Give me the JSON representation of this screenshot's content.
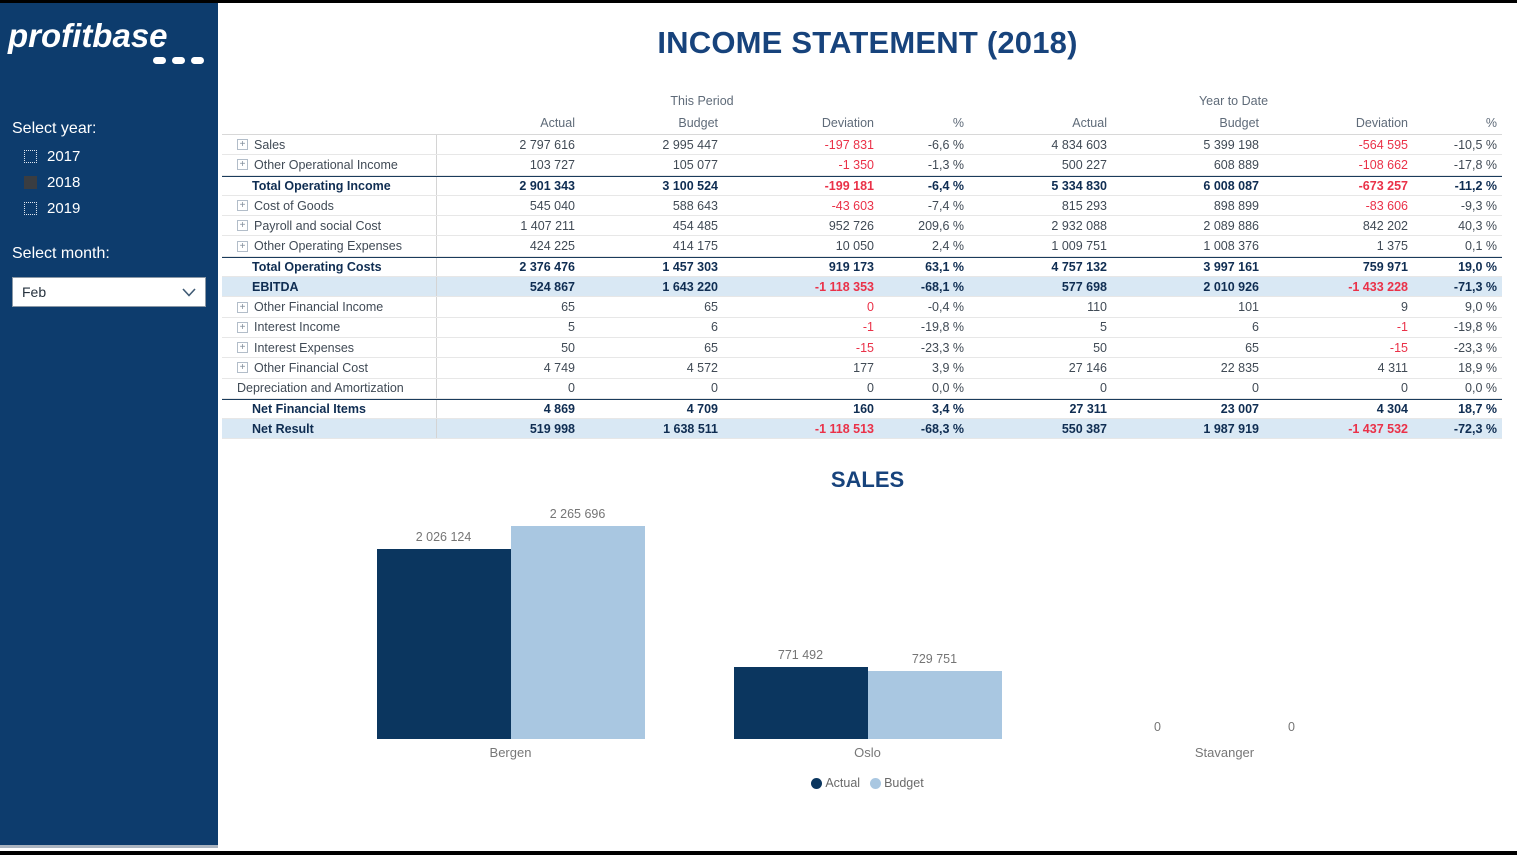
{
  "colors": {
    "sidebar_bg": "#0d3c6d",
    "title": "#17437c",
    "negative_red": "#ea3148",
    "highlight_row_bg": "#d9e8f4",
    "bar_actual": "#0b365f",
    "bar_budget": "#a9c7e1"
  },
  "sidebar": {
    "logo_text": "profitbase",
    "year_label": "Select year:",
    "years": [
      {
        "label": "2017",
        "checked": false
      },
      {
        "label": "2018",
        "checked": true
      },
      {
        "label": "2019",
        "checked": false
      }
    ],
    "month_label": "Select month:",
    "month_value": "Feb"
  },
  "header": {
    "title": "INCOME STATEMENT (2018)"
  },
  "table": {
    "group_headers": [
      "This Period",
      "Year to Date"
    ],
    "column_headers": [
      "Actual",
      "Budget",
      "Deviation",
      "%"
    ],
    "rows": [
      {
        "label": "Sales",
        "expandable": true,
        "bold": false,
        "top_border": false,
        "highlight": false,
        "cells": [
          "2 797 616",
          "2 995 447",
          "-197 831",
          "-6,6 %",
          "4 834 603",
          "5 399 198",
          "-564 595",
          "-10,5 %"
        ],
        "red_cols": [
          2,
          6
        ]
      },
      {
        "label": "Other Operational Income",
        "expandable": true,
        "bold": false,
        "top_border": false,
        "highlight": false,
        "cells": [
          "103 727",
          "105 077",
          "-1 350",
          "-1,3 %",
          "500 227",
          "608 889",
          "-108 662",
          "-17,8 %"
        ],
        "red_cols": [
          2,
          6
        ]
      },
      {
        "label": "Total Operating Income",
        "expandable": false,
        "bold": true,
        "top_border": true,
        "highlight": false,
        "cells": [
          "2 901 343",
          "3 100 524",
          "-199 181",
          "-6,4 %",
          "5 334 830",
          "6 008 087",
          "-673 257",
          "-11,2 %"
        ],
        "red_cols": [
          2,
          6
        ]
      },
      {
        "label": "Cost of Goods",
        "expandable": true,
        "bold": false,
        "top_border": false,
        "highlight": false,
        "cells": [
          "545 040",
          "588 643",
          "-43 603",
          "-7,4 %",
          "815 293",
          "898 899",
          "-83 606",
          "-9,3 %"
        ],
        "red_cols": [
          2,
          6
        ]
      },
      {
        "label": "Payroll and social Cost",
        "expandable": true,
        "bold": false,
        "top_border": false,
        "highlight": false,
        "cells": [
          "1 407 211",
          "454 485",
          "952 726",
          "209,6 %",
          "2 932 088",
          "2 089 886",
          "842 202",
          "40,3 %"
        ],
        "red_cols": []
      },
      {
        "label": "Other Operating Expenses",
        "expandable": true,
        "bold": false,
        "top_border": false,
        "highlight": false,
        "cells": [
          "424 225",
          "414 175",
          "10 050",
          "2,4 %",
          "1 009 751",
          "1 008 376",
          "1 375",
          "0,1 %"
        ],
        "red_cols": []
      },
      {
        "label": "Total Operating Costs",
        "expandable": false,
        "bold": true,
        "top_border": true,
        "highlight": false,
        "cells": [
          "2 376 476",
          "1 457 303",
          "919 173",
          "63,1 %",
          "4 757 132",
          "3 997 161",
          "759 971",
          "19,0 %"
        ],
        "red_cols": []
      },
      {
        "label": "EBITDA",
        "expandable": false,
        "bold": true,
        "top_border": false,
        "highlight": true,
        "cells": [
          "524 867",
          "1 643 220",
          "-1 118 353",
          "-68,1 %",
          "577 698",
          "2 010 926",
          "-1 433 228",
          "-71,3 %"
        ],
        "red_cols": [
          2,
          6
        ]
      },
      {
        "label": "Other Financial Income",
        "expandable": true,
        "bold": false,
        "top_border": false,
        "highlight": false,
        "cells": [
          "65",
          "65",
          "0",
          "-0,4 %",
          "110",
          "101",
          "9",
          "9,0 %"
        ],
        "red_cols": [
          2
        ]
      },
      {
        "label": "Interest Income",
        "expandable": true,
        "bold": false,
        "top_border": false,
        "highlight": false,
        "cells": [
          "5",
          "6",
          "-1",
          "-19,8 %",
          "5",
          "6",
          "-1",
          "-19,8 %"
        ],
        "red_cols": [
          2,
          6
        ]
      },
      {
        "label": "Interest Expenses",
        "expandable": true,
        "bold": false,
        "top_border": false,
        "highlight": false,
        "cells": [
          "50",
          "65",
          "-15",
          "-23,3 %",
          "50",
          "65",
          "-15",
          "-23,3 %"
        ],
        "red_cols": [
          2,
          6
        ]
      },
      {
        "label": "Other Financial Cost",
        "expandable": true,
        "bold": false,
        "top_border": false,
        "highlight": false,
        "cells": [
          "4 749",
          "4 572",
          "177",
          "3,9 %",
          "27 146",
          "22 835",
          "4 311",
          "18,9 %"
        ],
        "red_cols": []
      },
      {
        "label": "Depreciation and Amortization",
        "expandable": false,
        "bold": false,
        "top_border": false,
        "highlight": false,
        "cells": [
          "0",
          "0",
          "0",
          "0,0 %",
          "0",
          "0",
          "0",
          "0,0 %"
        ],
        "red_cols": []
      },
      {
        "label": "Net Financial Items",
        "expandable": false,
        "bold": true,
        "top_border": true,
        "highlight": false,
        "cells": [
          "4 869",
          "4 709",
          "160",
          "3,4 %",
          "27 311",
          "23 007",
          "4 304",
          "18,7 %"
        ],
        "red_cols": []
      },
      {
        "label": "Net Result",
        "expandable": false,
        "bold": true,
        "top_border": false,
        "highlight": true,
        "cells": [
          "519 998",
          "1 638 511",
          "-1 118 513",
          "-68,3 %",
          "550 387",
          "1 987 919",
          "-1 437 532",
          "-72,3 %"
        ],
        "red_cols": [
          2,
          6
        ]
      }
    ]
  },
  "chart_data": {
    "type": "bar",
    "title": "SALES",
    "categories": [
      "Bergen",
      "Oslo",
      "Stavanger"
    ],
    "series": [
      {
        "name": "Actual",
        "values": [
          2026124,
          771492,
          0
        ],
        "color": "#0b365f"
      },
      {
        "name": "Budget",
        "values": [
          2265696,
          729751,
          0
        ],
        "color": "#a9c7e1"
      }
    ],
    "value_labels": [
      [
        "2 026 124",
        "771 492",
        "0"
      ],
      [
        "2 265 696",
        "729 751",
        "0"
      ]
    ],
    "ylim": [
      0,
      2265696
    ],
    "grid": false,
    "legend_position": "bottom"
  }
}
